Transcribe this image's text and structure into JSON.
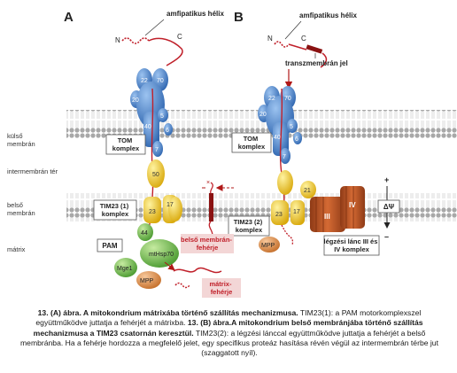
{
  "diagram": {
    "panel_a": "A",
    "panel_b": "B",
    "amphipathic_helix": "amfipatikus hélix",
    "transmembrane_signal": "transzmembrán jel",
    "n_terminus": "N",
    "c_terminus": "C",
    "outer_membrane": "külső\nmembrán",
    "intermembrane_space": "intermembrán tér",
    "inner_membrane": "belső\nmembrán",
    "matrix": "mátrix",
    "tom_complex": "TOM\nkomplex",
    "tim23_1_complex": "TIM23 (1)\nkomplex",
    "tim23_2_complex": "TIM23 (2)\nkomplex",
    "pam": "PAM",
    "mthsp70": "mtHsp70",
    "mge1": "Mge1",
    "mpp": "MPP",
    "matrix_protein": "mátrix-\nfehérje",
    "inner_membrane_protein": "belső membrán-\nfehérje",
    "respiratory_chain": "légzési lánc III és\nIV komplex",
    "delta_psi": "ΔΨ",
    "plus": "+",
    "minus": "–",
    "tom_subunits": [
      "22",
      "70",
      "20",
      "5",
      "40",
      "6",
      "7"
    ],
    "tim_subunits": [
      "50",
      "17",
      "23",
      "21",
      "44"
    ],
    "complex_numerals": [
      "III",
      "IV"
    ]
  },
  "caption": {
    "a_title": "13. (A) ábra. A mitokondrium mátrixába történő szállítás mechanizmusa.",
    "a_text": " TIM23(1): a PAM motorkomplexszel együttműködve juttatja a fehérjét a mátrixba. ",
    "b_title": "13. (B) ábra.A mitokondrium belső membránjába történő szállítás mechanizmusa a TIM23 csatornán keresztül.",
    "b_text": " TIM23(2): a légzési lánccal együttműködve juttatja a fehérjét a belső membránba. Ha a fehérje hordozza a megfelelő jelet, egy specifikus proteáz hasítása révén végül az intermembrán térbe jut (szaggatott nyíl)."
  },
  "colors": {
    "tom": "#4a7fc0",
    "tim": "#f0c419",
    "pam": "#6ab04c",
    "mpp": "#d9893a",
    "respiratory": "#c05a2a",
    "protein_chain": "#c0202a",
    "membrane_head": "#9a9a9a",
    "label_box_pink": "#f3d6d6"
  }
}
